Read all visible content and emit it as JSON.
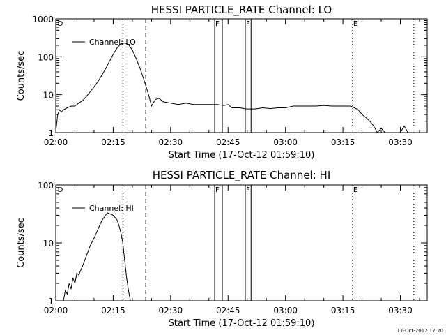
{
  "footer": {
    "timestamp": "17-Oct-2012 17:20"
  },
  "chart_data": [
    {
      "type": "line",
      "title": "HESSI PARTICLE_RATE Channel: LO",
      "ylabel": "Counts/sec",
      "xlabel": "Start Time (17-Oct-12 01:59:10)",
      "x_unit": "minutes after 02:00",
      "xlim": [
        0,
        97
      ],
      "ylim": [
        1,
        1000
      ],
      "y_scale": "log",
      "x_ticks": [
        {
          "v": 0,
          "label": "02:00"
        },
        {
          "v": 15,
          "label": "02:15"
        },
        {
          "v": 30,
          "label": "02:30"
        },
        {
          "v": 45,
          "label": "02:45"
        },
        {
          "v": 60,
          "label": "03:00"
        },
        {
          "v": 75,
          "label": "03:15"
        },
        {
          "v": 90,
          "label": "03:30"
        }
      ],
      "y_ticks": [
        {
          "v": 1,
          "label": "1"
        },
        {
          "v": 10,
          "label": "10"
        },
        {
          "v": 100,
          "label": "100"
        },
        {
          "v": 1000,
          "label": "1000"
        }
      ],
      "legend": "Channel: LO",
      "legend_position": "top-left",
      "markers": [
        {
          "x": 0.3,
          "label": "D",
          "style": "none"
        },
        {
          "x": 17.5,
          "label": "",
          "style": "dotted"
        },
        {
          "x": 23.5,
          "label": "",
          "style": "dashed"
        },
        {
          "x": 41.5,
          "label": "F",
          "style": "solid"
        },
        {
          "x": 43.5,
          "label": "",
          "style": "solid"
        },
        {
          "x": 49.5,
          "label": "F",
          "style": "solid"
        },
        {
          "x": 51.0,
          "label": "",
          "style": "solid"
        },
        {
          "x": 77.5,
          "label": "E",
          "style": "dotted"
        },
        {
          "x": 93.5,
          "label": "",
          "style": "dotted"
        }
      ],
      "series": [
        {
          "x": [
            0,
            0.5,
            1,
            1.5,
            2,
            3,
            4,
            5,
            6,
            7,
            8,
            9,
            10,
            11,
            12,
            13,
            14,
            15,
            16,
            17,
            18,
            19,
            20,
            21,
            22,
            23,
            24,
            24.5,
            25,
            26,
            27,
            28,
            30,
            32,
            34,
            36,
            38,
            40,
            42,
            44,
            45,
            46,
            48,
            50,
            52,
            54,
            56,
            58,
            60,
            62,
            64,
            66,
            68,
            70,
            72,
            74,
            76,
            77,
            78,
            79,
            80,
            81,
            82,
            83,
            84,
            85,
            86,
            87,
            88,
            89,
            90,
            91,
            92,
            93,
            94,
            95,
            96,
            97
          ],
          "y": [
            1,
            3,
            4,
            3.5,
            4,
            4.5,
            5,
            5,
            6,
            7,
            9,
            12,
            16,
            22,
            32,
            48,
            75,
            115,
            170,
            220,
            230,
            210,
            150,
            90,
            50,
            25,
            12,
            8,
            5,
            7.5,
            8,
            6.5,
            6,
            5.5,
            6,
            5.5,
            5.5,
            5.5,
            5.5,
            5.2,
            5.5,
            4.5,
            4.5,
            4.2,
            4.2,
            4.5,
            4.3,
            4.5,
            4.5,
            5,
            5,
            5,
            5,
            5.2,
            5,
            5,
            5,
            5,
            4.5,
            4,
            3,
            2.5,
            2,
            1.5,
            1,
            1.3,
            1,
            1,
            1,
            1,
            1,
            1.5,
            1,
            1,
            1,
            1,
            1,
            1
          ]
        }
      ]
    },
    {
      "type": "line",
      "title": "HESSI PARTICLE_RATE Channel: HI",
      "ylabel": "Counts/sec",
      "xlabel": "Start Time (17-Oct-12 01:59:10)",
      "x_unit": "minutes after 02:00",
      "xlim": [
        0,
        97
      ],
      "ylim": [
        1,
        100
      ],
      "y_scale": "log",
      "x_ticks": [
        {
          "v": 0,
          "label": "02:00"
        },
        {
          "v": 15,
          "label": "02:15"
        },
        {
          "v": 30,
          "label": "02:30"
        },
        {
          "v": 45,
          "label": "02:45"
        },
        {
          "v": 60,
          "label": "03:00"
        },
        {
          "v": 75,
          "label": "03:15"
        },
        {
          "v": 90,
          "label": "03:30"
        }
      ],
      "y_ticks": [
        {
          "v": 1,
          "label": "1"
        },
        {
          "v": 10,
          "label": "10"
        },
        {
          "v": 100,
          "label": "100"
        }
      ],
      "legend": "Channel: HI",
      "legend_position": "top-left",
      "markers": [
        {
          "x": 0.3,
          "label": "D",
          "style": "none"
        },
        {
          "x": 17.5,
          "label": "",
          "style": "dotted"
        },
        {
          "x": 23.5,
          "label": "",
          "style": "dashed"
        },
        {
          "x": 41.5,
          "label": "F",
          "style": "solid"
        },
        {
          "x": 43.5,
          "label": "",
          "style": "solid"
        },
        {
          "x": 49.5,
          "label": "F",
          "style": "solid"
        },
        {
          "x": 51.0,
          "label": "",
          "style": "solid"
        },
        {
          "x": 77.5,
          "label": "E",
          "style": "dotted"
        },
        {
          "x": 93.5,
          "label": "",
          "style": "dotted"
        }
      ],
      "series": [
        {
          "x": [
            2,
            2.5,
            3,
            3.5,
            4,
            4.5,
            5,
            5.5,
            6,
            7,
            8,
            9,
            10,
            11,
            12,
            13,
            13.5,
            14,
            15,
            16,
            16.5,
            17,
            17.5,
            18,
            18.5,
            19,
            19.5
          ],
          "y": [
            1,
            1.5,
            1.3,
            2,
            1.6,
            2.5,
            2,
            3,
            2.8,
            4,
            6,
            9,
            12,
            17,
            24,
            30,
            33,
            32,
            30,
            25,
            20,
            15,
            10,
            5,
            2.5,
            1.5,
            1
          ]
        }
      ]
    }
  ]
}
